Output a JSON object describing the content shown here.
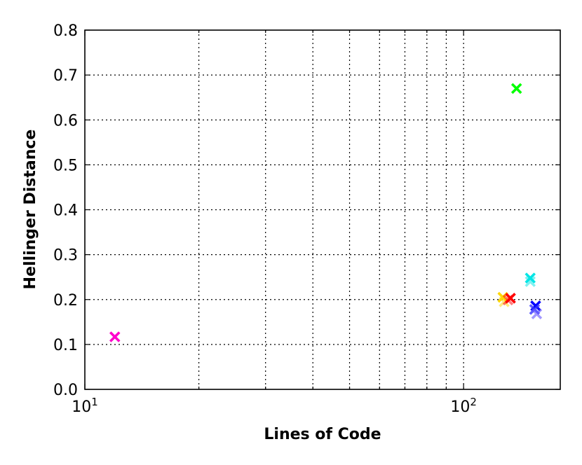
{
  "chart_data": {
    "type": "scatter",
    "xlabel": "Lines of Code",
    "ylabel": "Hellinger Distance",
    "xscale": "log",
    "xlim": [
      10,
      180
    ],
    "ylim": [
      0.0,
      0.8
    ],
    "grid": true,
    "marker": "x",
    "y_ticks": [
      0.0,
      0.1,
      0.2,
      0.3,
      0.4,
      0.5,
      0.6,
      0.7,
      0.8
    ],
    "y_tick_labels": [
      "0.0",
      "0.1",
      "0.2",
      "0.3",
      "0.4",
      "0.5",
      "0.6",
      "0.7",
      "0.8"
    ],
    "x_major_ticks": [
      {
        "value": 10,
        "base": "10",
        "exp": "1"
      },
      {
        "value": 100,
        "base": "10",
        "exp": "2"
      }
    ],
    "x_minor_ticks": [
      20,
      30,
      40,
      50,
      60,
      70,
      80,
      90
    ],
    "points": [
      {
        "x": 12,
        "y": 0.117,
        "color": "#ff00cc",
        "alpha": 1
      },
      {
        "x": 138,
        "y": 0.67,
        "color": "#00ff00",
        "alpha": 1
      },
      {
        "x": 150,
        "y": 0.248,
        "color": "#00e5e5",
        "alpha": 1
      },
      {
        "x": 150,
        "y": 0.24,
        "color": "#00e5e5",
        "alpha": 0.5
      },
      {
        "x": 127,
        "y": 0.205,
        "color": "#ffd700",
        "alpha": 1
      },
      {
        "x": 128,
        "y": 0.195,
        "color": "#ffd700",
        "alpha": 0.5
      },
      {
        "x": 133,
        "y": 0.203,
        "color": "#ff0000",
        "alpha": 1
      },
      {
        "x": 131,
        "y": 0.199,
        "color": "#ff0000",
        "alpha": 0.5
      },
      {
        "x": 155,
        "y": 0.186,
        "color": "#0000ff",
        "alpha": 1
      },
      {
        "x": 154,
        "y": 0.178,
        "color": "#3333ff",
        "alpha": 0.8
      },
      {
        "x": 156,
        "y": 0.168,
        "color": "#6655ff",
        "alpha": 0.6
      }
    ]
  }
}
